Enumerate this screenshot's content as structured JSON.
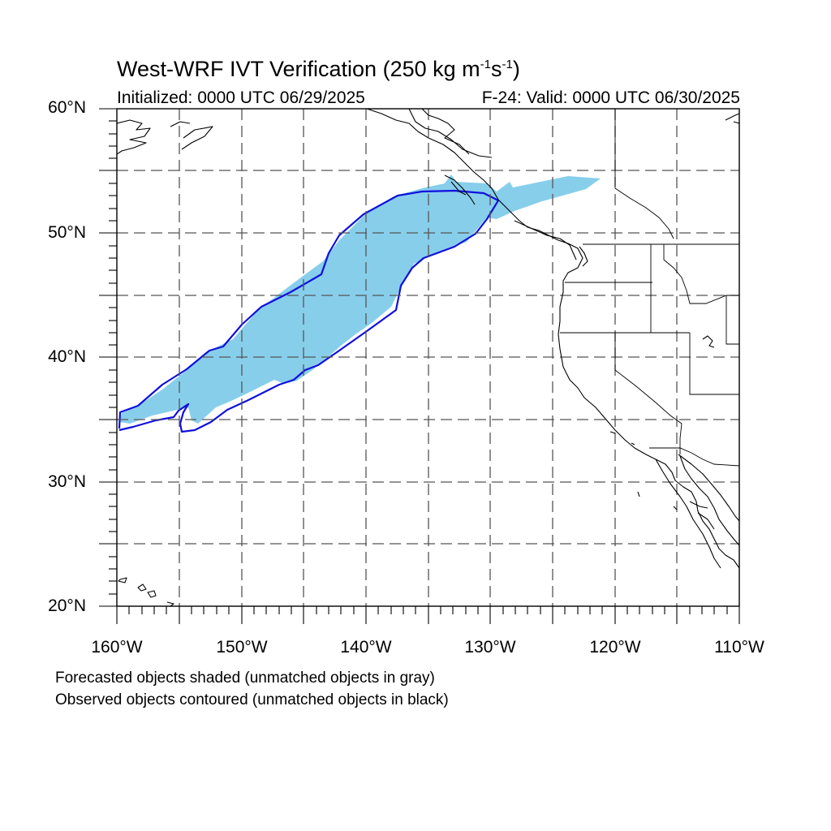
{
  "figure": {
    "title_main": "West-WRF IVT Verification (250 kg m",
    "title_exp1": "-1",
    "title_mid": "s",
    "title_exp2": "-1",
    "title_end": ")",
    "initialized": "Initialized: 0000 UTC 06/29/2025",
    "valid": "F-24: Valid: 0000 UTC 06/30/2025"
  },
  "axes": {
    "lat_labels": [
      "60°N",
      "50°N",
      "40°N",
      "30°N",
      "20°N"
    ],
    "lon_labels": [
      "160°W",
      "150°W",
      "140°W",
      "130°W",
      "120°W",
      "110°W"
    ],
    "lat_range": [
      20,
      60
    ],
    "lon_range": [
      -160,
      -110
    ],
    "gridline_spacing_deg": 5,
    "gridlines": true
  },
  "legend": {
    "line1": "Forecasted objects shaded (unmatched objects in gray)",
    "line2": "Observed objects contoured (unmatched objects in black)"
  },
  "colors": {
    "forecast_fill": "#87ceeb",
    "observed_contour": "#1010dd",
    "coastline": "#000000",
    "grid": "#555555"
  }
}
